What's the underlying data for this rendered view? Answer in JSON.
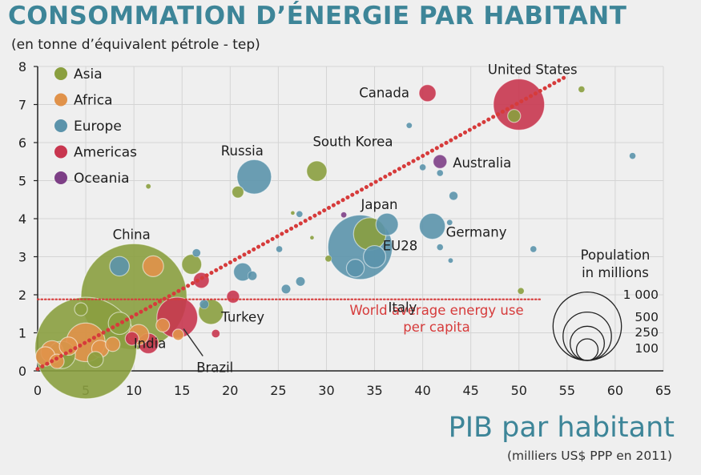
{
  "chart_data": {
    "type": "scatter",
    "title": "CONSOMMATION D’ÉNERGIE PAR HABITANT",
    "subtitle": "(en tonne d’équivalent pétrole - tep)",
    "xlabel": "PIB par habitant",
    "xlabel_sub": "(milliers US$ PPP en 2011)",
    "ylabel": "",
    "xlim": [
      0,
      65
    ],
    "ylim": [
      0,
      8
    ],
    "x_ticks": [
      "0",
      "5",
      "10",
      "15",
      "20",
      "25",
      "30",
      "35",
      "40",
      "45",
      "50",
      "55",
      "60",
      "65"
    ],
    "y_ticks": [
      "0",
      "1",
      "2",
      "3",
      "4",
      "5",
      "6",
      "7",
      "8"
    ],
    "grid": true,
    "legend_position": "top-left",
    "legend": [
      {
        "name": "Asia",
        "color": "#8a9f3f"
      },
      {
        "name": "Africa",
        "color": "#e0924a"
      },
      {
        "name": "Europe",
        "color": "#5b93ab"
      },
      {
        "name": "Americas",
        "color": "#c8364f"
      },
      {
        "name": "Oceania",
        "color": "#7d3f86"
      }
    ],
    "reference_line": {
      "label": "World average energy use per capita",
      "label_lines": [
        "World average energy use",
        "per capita"
      ],
      "y": 1.88,
      "color": "#d63b3b"
    },
    "trend_line": {
      "from": [
        0,
        0.05
      ],
      "to": [
        55,
        7.75
      ],
      "color": "#d63b3b"
    },
    "size_legend": {
      "title": "Population",
      "title_lines": [
        "Population",
        "in millions"
      ],
      "values": [
        1000,
        500,
        250,
        100
      ],
      "labels": [
        "1 000",
        "500",
        "250",
        "100"
      ]
    },
    "points": [
      {
        "label": "China",
        "region": "Asia",
        "x": 10,
        "y": 1.95,
        "pop": 1350
      },
      {
        "label": "India",
        "region": "Asia",
        "x": 5,
        "y": 0.6,
        "pop": 1240
      },
      {
        "label": "EU28",
        "region": "Europe",
        "x": 33.5,
        "y": 3.25,
        "pop": 500
      },
      {
        "label": "United States",
        "region": "Americas",
        "x": 50,
        "y": 7.0,
        "pop": 315
      },
      {
        "label": "Canada",
        "region": "Americas",
        "x": 40.5,
        "y": 7.3,
        "pop": 35
      },
      {
        "label": "Russia",
        "region": "Europe",
        "x": 22.5,
        "y": 5.1,
        "pop": 143
      },
      {
        "label": "South Korea",
        "region": "Asia",
        "x": 29,
        "y": 5.25,
        "pop": 50
      },
      {
        "label": "Japan",
        "region": "Asia",
        "x": 34.5,
        "y": 3.6,
        "pop": 127
      },
      {
        "label": "Germany",
        "region": "Europe",
        "x": 41,
        "y": 3.8,
        "pop": 81
      },
      {
        "label": "Australia",
        "region": "Oceania",
        "x": 41.8,
        "y": 5.5,
        "pop": 23
      },
      {
        "label": "Italy",
        "region": "Europe",
        "x": 35,
        "y": 3.0,
        "pop": 60
      },
      {
        "label": "Turkey",
        "region": "Asia",
        "x": 18,
        "y": 1.55,
        "pop": 75
      },
      {
        "label": "Brazil",
        "region": "Americas",
        "x": 14.5,
        "y": 1.4,
        "pop": 200
      },
      {
        "label": "",
        "region": "Europe",
        "x": 36.3,
        "y": 3.85,
        "pop": 60
      },
      {
        "label": "",
        "region": "Europe",
        "x": 33,
        "y": 2.7,
        "pop": 38
      },
      {
        "label": "",
        "region": "Asia",
        "x": 49.5,
        "y": 6.7,
        "pop": 20
      },
      {
        "label": "",
        "region": "Asia",
        "x": 56.5,
        "y": 7.4,
        "pop": 5
      },
      {
        "label": "",
        "region": "Europe",
        "x": 61.8,
        "y": 5.65,
        "pop": 5
      },
      {
        "label": "",
        "region": "Europe",
        "x": 38.6,
        "y": 6.45,
        "pop": 4
      },
      {
        "label": "",
        "region": "Europe",
        "x": 40,
        "y": 5.35,
        "pop": 5
      },
      {
        "label": "",
        "region": "Europe",
        "x": 41.8,
        "y": 5.2,
        "pop": 5
      },
      {
        "label": "",
        "region": "Europe",
        "x": 43.2,
        "y": 4.6,
        "pop": 9
      },
      {
        "label": "",
        "region": "Europe",
        "x": 42.8,
        "y": 3.9,
        "pop": 4
      },
      {
        "label": "",
        "region": "Europe",
        "x": 41.8,
        "y": 3.25,
        "pop": 5
      },
      {
        "label": "",
        "region": "Europe",
        "x": 42.9,
        "y": 2.9,
        "pop": 3
      },
      {
        "label": "",
        "region": "Europe",
        "x": 51.5,
        "y": 3.2,
        "pop": 5
      },
      {
        "label": "",
        "region": "Asia",
        "x": 50.2,
        "y": 2.1,
        "pop": 5
      },
      {
        "label": "",
        "region": "Asia",
        "x": 20.8,
        "y": 4.7,
        "pop": 17
      },
      {
        "label": "",
        "region": "Asia",
        "x": 11.5,
        "y": 4.85,
        "pop": 3
      },
      {
        "label": "",
        "region": "Europe",
        "x": 27.2,
        "y": 4.12,
        "pop": 5
      },
      {
        "label": "",
        "region": "Oceania",
        "x": 31.8,
        "y": 4.1,
        "pop": 4
      },
      {
        "label": "",
        "region": "Europe",
        "x": 25.1,
        "y": 3.2,
        "pop": 5
      },
      {
        "label": "",
        "region": "Asia",
        "x": 30.2,
        "y": 2.95,
        "pop": 5
      },
      {
        "label": "",
        "region": "Europe",
        "x": 21.3,
        "y": 2.6,
        "pop": 40
      },
      {
        "label": "",
        "region": "Europe",
        "x": 22.3,
        "y": 2.5,
        "pop": 10
      },
      {
        "label": "",
        "region": "Europe",
        "x": 27.3,
        "y": 2.35,
        "pop": 10
      },
      {
        "label": "",
        "region": "Europe",
        "x": 25.8,
        "y": 2.15,
        "pop": 10
      },
      {
        "label": "",
        "region": "Europe",
        "x": 8.5,
        "y": 2.75,
        "pop": 46
      },
      {
        "label": "",
        "region": "Africa",
        "x": 12,
        "y": 2.75,
        "pop": 52
      },
      {
        "label": "",
        "region": "Asia",
        "x": 16,
        "y": 2.8,
        "pop": 48
      },
      {
        "label": "",
        "region": "Europe",
        "x": 16.5,
        "y": 3.1,
        "pop": 8
      },
      {
        "label": "",
        "region": "Americas",
        "x": 17,
        "y": 2.38,
        "pop": 30
      },
      {
        "label": "",
        "region": "Americas",
        "x": 20.3,
        "y": 1.95,
        "pop": 20
      },
      {
        "label": "",
        "region": "Europe",
        "x": 17.3,
        "y": 1.75,
        "pop": 10
      },
      {
        "label": "",
        "region": "Americas",
        "x": 18.5,
        "y": 0.98,
        "pop": 8
      },
      {
        "label": "",
        "region": "Americas",
        "x": 11.5,
        "y": 0.72,
        "pop": 50
      },
      {
        "label": "",
        "region": "Americas",
        "x": 9.8,
        "y": 0.85,
        "pop": 22
      },
      {
        "label": "",
        "region": "Africa",
        "x": 10.5,
        "y": 0.95,
        "pop": 50
      },
      {
        "label": "",
        "region": "Africa",
        "x": 13,
        "y": 1.2,
        "pop": 22
      },
      {
        "label": "",
        "region": "Asia",
        "x": 4.5,
        "y": 1.62,
        "pop": 20
      },
      {
        "label": "",
        "region": "Asia",
        "x": 8.5,
        "y": 1.25,
        "pop": 60
      },
      {
        "label": "",
        "region": "Africa",
        "x": 5,
        "y": 0.75,
        "pop": 180
      },
      {
        "label": "",
        "region": "Asia",
        "x": 2.5,
        "y": 0.42,
        "pop": 90
      },
      {
        "label": "",
        "region": "Africa",
        "x": 1.5,
        "y": 0.5,
        "pop": 60
      },
      {
        "label": "",
        "region": "Africa",
        "x": 0.8,
        "y": 0.38,
        "pop": 45
      },
      {
        "label": "",
        "region": "Africa",
        "x": 3.2,
        "y": 0.65,
        "pop": 40
      },
      {
        "label": "",
        "region": "Africa",
        "x": 6.5,
        "y": 0.58,
        "pop": 35
      },
      {
        "label": "",
        "region": "Africa",
        "x": 7.8,
        "y": 0.7,
        "pop": 25
      },
      {
        "label": "",
        "region": "Africa",
        "x": 2,
        "y": 0.25,
        "pop": 25
      },
      {
        "label": "",
        "region": "Asia",
        "x": 6,
        "y": 0.3,
        "pop": 30
      },
      {
        "label": "",
        "region": "Asia",
        "x": 26.5,
        "y": 4.15,
        "pop": 2
      },
      {
        "label": "",
        "region": "Asia",
        "x": 28.5,
        "y": 3.5,
        "pop": 2
      },
      {
        "label": "",
        "region": "Africa",
        "x": 14.6,
        "y": 0.95,
        "pop": 15
      }
    ]
  }
}
